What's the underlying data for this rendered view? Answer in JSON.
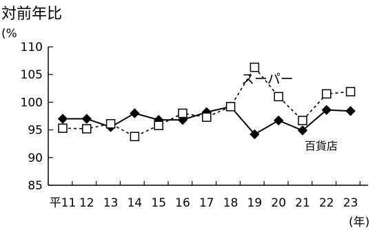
{
  "chart_data": {
    "type": "line",
    "title": "対前年比",
    "y_unit": "(%",
    "x_unit": "(年)",
    "categories": [
      "平11",
      "12",
      "13",
      "14",
      "15",
      "16",
      "17",
      "18",
      "19",
      "20",
      "21",
      "22",
      "23"
    ],
    "ylim": [
      85,
      110
    ],
    "yticks": [
      85,
      90,
      95,
      100,
      105,
      110
    ],
    "grid": false,
    "series": [
      {
        "name": "百貨店",
        "color": "#000000",
        "line_style": "solid",
        "marker": "filled-diamond",
        "values": [
          97.0,
          97.0,
          95.5,
          98.0,
          96.8,
          96.8,
          98.2,
          99.2,
          94.2,
          96.7,
          94.9,
          98.6,
          98.4
        ]
      },
      {
        "name": "スーパー",
        "color": "#000000",
        "line_style": "dashed",
        "marker": "open-square",
        "values": [
          95.3,
          95.2,
          96.1,
          93.8,
          95.8,
          98.0,
          97.3,
          99.2,
          106.3,
          101.0,
          96.7,
          101.5,
          101.9
        ]
      }
    ]
  }
}
